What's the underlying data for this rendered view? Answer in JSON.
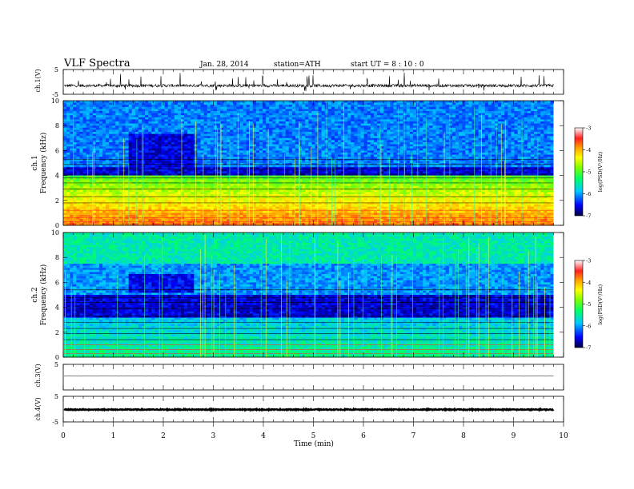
{
  "header": {
    "title": "VLF  Spectra",
    "date": "Jan. 28, 2014",
    "station": "station=ATH",
    "start": "start  UT  =   8 : 10 : 0"
  },
  "chart_data": [
    {
      "type": "line",
      "panel": "ch1-waveform",
      "ylabel": "ch.1(V)",
      "ylim": [
        -5,
        5
      ],
      "yticks": [
        "5",
        "-5"
      ],
      "level": -1.5,
      "xlim": [
        0,
        10
      ]
    },
    {
      "type": "heatmap",
      "panel": "ch1-spectrogram",
      "ylabel": [
        "ch.1",
        "Frequency  (kHz)"
      ],
      "ylim": [
        0,
        10
      ],
      "yticks": [
        "0",
        "2",
        "4",
        "6",
        "8",
        "10"
      ],
      "xlim": [
        0,
        10
      ],
      "data_end_min": 9.8,
      "colorbar": {
        "label": "log(PSD(V²/Hz)",
        "range": [
          -7,
          -3
        ],
        "ticks": [
          "-3",
          "-4",
          "-5",
          "-6",
          "-7"
        ]
      }
    },
    {
      "type": "heatmap",
      "panel": "ch2-spectrogram",
      "ylabel": [
        "ch.2",
        "Frequency  (kHz)"
      ],
      "ylim": [
        0,
        10
      ],
      "yticks": [
        "0",
        "2",
        "4",
        "6",
        "8",
        "10"
      ],
      "xlim": [
        0,
        10
      ],
      "data_end_min": 9.8,
      "colorbar": {
        "label": "log(PSD(V²/Hz)",
        "range": [
          -7,
          -3
        ],
        "ticks": [
          "-3",
          "-4",
          "-5",
          "-6",
          "-7"
        ]
      }
    },
    {
      "type": "line",
      "panel": "ch3-waveform",
      "ylabel": "ch.3(V)",
      "ylim": [
        -5,
        5
      ],
      "yticks": [
        "5"
      ],
      "level": 0.4,
      "xlim": [
        0,
        10
      ]
    },
    {
      "type": "line",
      "panel": "ch4-waveform",
      "ylabel": "ch.4(V)",
      "ylim": [
        -5,
        5
      ],
      "yticks": [
        "5",
        "-5"
      ],
      "level": -0.2,
      "xlim": [
        0,
        10
      ]
    }
  ],
  "xaxis": {
    "label": "Time  (min)",
    "ticks": [
      "0",
      "1",
      "2",
      "3",
      "4",
      "5",
      "6",
      "7",
      "8",
      "9",
      "10"
    ]
  }
}
